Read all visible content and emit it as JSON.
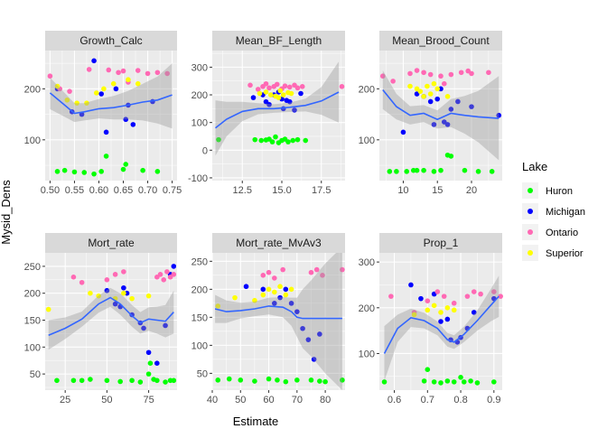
{
  "figure": {
    "xlabel": "Estimate",
    "ylabel": "Mysid_Dens"
  },
  "legend": {
    "title": "Lake",
    "placement": "right",
    "items": [
      {
        "label": "Huron",
        "color": "#00ff00"
      },
      {
        "label": "Michigan",
        "color": "#0000ff"
      },
      {
        "label": "Ontario",
        "color": "#ff69b4"
      },
      {
        "label": "Superior",
        "color": "#ffff00"
      }
    ]
  },
  "colors": {
    "panel_bg": "#ebebeb",
    "strip_bg": "#d9d9d9",
    "grid": "#ffffff",
    "smooth_line": "#3366ff",
    "ribbon": "#999999"
  },
  "chart_data": [
    {
      "type": "scatter",
      "title": "Growth_Calc",
      "xlim": [
        0.49,
        0.76
      ],
      "ylim": [
        20,
        275
      ],
      "xticks": [
        0.5,
        0.55,
        0.6,
        0.65,
        0.7,
        0.75
      ],
      "xtick_labels": [
        "0.50",
        "0.55",
        "0.60",
        "0.65",
        "0.70",
        "0.75"
      ],
      "yticks": [
        100,
        200
      ],
      "smooth": {
        "x": [
          0.5,
          0.53,
          0.55,
          0.57,
          0.6,
          0.63,
          0.66,
          0.69,
          0.72,
          0.75
        ],
        "y": [
          192,
          168,
          152,
          155,
          161,
          163,
          168,
          174,
          178,
          188
        ],
        "lower": [
          160,
          145,
          135,
          138,
          142,
          140,
          140,
          138,
          132,
          122
        ],
        "upper": [
          222,
          192,
          172,
          172,
          180,
          186,
          196,
          210,
          224,
          250
        ]
      },
      "series": [
        {
          "name": "Huron",
          "x": [
            0.515,
            0.53,
            0.55,
            0.57,
            0.59,
            0.605,
            0.615,
            0.65,
            0.655,
            0.69,
            0.72
          ],
          "y": [
            38,
            40,
            37,
            36,
            33,
            38,
            68,
            42,
            52,
            40,
            38
          ]
        },
        {
          "name": "Michigan",
          "x": [
            0.515,
            0.545,
            0.565,
            0.59,
            0.605,
            0.615,
            0.635,
            0.655,
            0.66,
            0.67,
            0.71
          ],
          "y": [
            200,
            155,
            150,
            255,
            190,
            115,
            200,
            140,
            168,
            130,
            175
          ]
        },
        {
          "name": "Ontario",
          "x": [
            0.5,
            0.52,
            0.54,
            0.58,
            0.62,
            0.64,
            0.65,
            0.66,
            0.68,
            0.7,
            0.72,
            0.74
          ],
          "y": [
            225,
            200,
            195,
            238,
            237,
            232,
            235,
            213,
            236,
            230,
            232,
            230
          ]
        },
        {
          "name": "Superior",
          "x": [
            0.515,
            0.535,
            0.555,
            0.575,
            0.595,
            0.61,
            0.63,
            0.66,
            0.68
          ],
          "y": [
            205,
            178,
            172,
            172,
            192,
            200,
            210,
            218,
            210
          ]
        }
      ]
    },
    {
      "type": "scatter",
      "title": "Mean_BF_Length",
      "xlim": [
        10.6,
        19.0
      ],
      "ylim": [
        -110,
        360
      ],
      "xticks": [
        12.5,
        15,
        17.5
      ],
      "xtick_labels": [
        "12.5",
        "15.0",
        "17.5"
      ],
      "yticks": [
        -100,
        0,
        100,
        200,
        300
      ],
      "smooth": {
        "x": [
          10.8,
          11.5,
          12.5,
          13.5,
          14.5,
          15.5,
          16.5,
          17.5,
          18.6
        ],
        "y": [
          80,
          112,
          140,
          150,
          150,
          155,
          162,
          178,
          210
        ],
        "lower": [
          -20,
          50,
          105,
          130,
          135,
          138,
          140,
          128,
          100
        ],
        "upper": [
          180,
          175,
          175,
          170,
          166,
          172,
          186,
          228,
          320
        ]
      },
      "series": [
        {
          "name": "Huron",
          "x": [
            11.0,
            13.3,
            13.7,
            14.0,
            14.2,
            14.4,
            14.6,
            14.8,
            15.0,
            15.2,
            15.4,
            15.7,
            16.0,
            16.5
          ],
          "y": [
            38,
            38,
            35,
            37,
            40,
            30,
            48,
            27,
            35,
            40,
            30,
            35,
            38,
            35
          ]
        },
        {
          "name": "Michigan",
          "x": [
            13.2,
            13.8,
            14.2,
            14.5,
            14.8,
            15.0,
            15.1,
            15.3,
            15.5,
            15.8,
            16.2,
            14.0
          ],
          "y": [
            190,
            200,
            165,
            200,
            210,
            185,
            150,
            180,
            175,
            145,
            205,
            175
          ]
        },
        {
          "name": "Ontario",
          "x": [
            13.0,
            13.5,
            13.8,
            14.0,
            14.2,
            14.5,
            14.7,
            15.0,
            15.2,
            15.5,
            15.8,
            16.0,
            16.3,
            18.8
          ],
          "y": [
            235,
            220,
            230,
            240,
            225,
            230,
            238,
            222,
            232,
            228,
            235,
            225,
            230,
            230
          ]
        },
        {
          "name": "Superior",
          "x": [
            13.6,
            14.0,
            14.3,
            14.6,
            14.9,
            15.1,
            15.4,
            15.6,
            14.8
          ],
          "y": [
            205,
            210,
            200,
            195,
            215,
            200,
            208,
            205,
            190
          ]
        }
      ]
    },
    {
      "type": "scatter",
      "title": "Mean_Brood_Count",
      "xlim": [
        6.5,
        24.5
      ],
      "ylim": [
        20,
        275
      ],
      "xticks": [
        10,
        15,
        20
      ],
      "xtick_labels": [
        "10",
        "15",
        "20"
      ],
      "yticks": [
        100,
        200
      ],
      "smooth": {
        "x": [
          7,
          9,
          11,
          13,
          15,
          17,
          19,
          21,
          24
        ],
        "y": [
          198,
          165,
          148,
          152,
          140,
          152,
          148,
          145,
          142
        ],
        "lower": [
          160,
          140,
          130,
          135,
          122,
          125,
          112,
          95,
          60
        ],
        "upper": [
          236,
          190,
          166,
          168,
          158,
          180,
          186,
          196,
          225
        ]
      },
      "series": [
        {
          "name": "Huron",
          "x": [
            8.0,
            9.0,
            10.5,
            11.5,
            12.0,
            13.0,
            14.5,
            15.5,
            16.5,
            17.0,
            19.0,
            21.0,
            23.0
          ],
          "y": [
            38,
            38,
            38,
            40,
            40,
            40,
            38,
            40,
            70,
            68,
            40,
            38,
            38
          ]
        },
        {
          "name": "Michigan",
          "x": [
            10.0,
            12.0,
            13.0,
            14.0,
            14.5,
            15.0,
            15.5,
            16.0,
            16.5,
            17.0,
            18.0,
            20.0,
            24.0
          ],
          "y": [
            115,
            190,
            185,
            175,
            130,
            180,
            200,
            135,
            130,
            160,
            175,
            165,
            148
          ]
        },
        {
          "name": "Ontario",
          "x": [
            7.0,
            8.5,
            11.0,
            12.0,
            13.0,
            14.0,
            15.5,
            16.0,
            17.0,
            18.5,
            19.5,
            20.0,
            22.5
          ],
          "y": [
            225,
            215,
            230,
            236,
            232,
            228,
            225,
            210,
            228,
            232,
            235,
            230,
            232
          ]
        },
        {
          "name": "Superior",
          "x": [
            11.0,
            12.0,
            12.5,
            13.0,
            13.5,
            14.0,
            14.5,
            15.0,
            16.5
          ],
          "y": [
            205,
            200,
            195,
            185,
            205,
            190,
            210,
            200,
            185
          ]
        }
      ]
    },
    {
      "type": "scatter",
      "title": "Mort_rate",
      "xlim": [
        13,
        92
      ],
      "ylim": [
        20,
        275
      ],
      "xticks": [
        25,
        50,
        75
      ],
      "xtick_labels": [
        "25",
        "50",
        "75"
      ],
      "yticks": [
        50,
        100,
        150,
        200,
        250
      ],
      "smooth": {
        "x": [
          15,
          25,
          35,
          45,
          52,
          58,
          65,
          70,
          75,
          80,
          85,
          90
        ],
        "y": [
          122,
          135,
          152,
          180,
          192,
          180,
          158,
          145,
          152,
          150,
          148,
          165
        ],
        "lower": [
          95,
          115,
          138,
          164,
          175,
          160,
          138,
          125,
          130,
          125,
          118,
          125
        ],
        "upper": [
          150,
          155,
          166,
          196,
          210,
          200,
          178,
          165,
          174,
          175,
          178,
          205
        ]
      },
      "series": [
        {
          "name": "Huron",
          "x": [
            20,
            30,
            35,
            40,
            50,
            58,
            65,
            70,
            75,
            76,
            78,
            80,
            85,
            88,
            90
          ],
          "y": [
            38,
            38,
            38,
            40,
            38,
            36,
            38,
            35,
            50,
            70,
            40,
            38,
            35,
            38,
            38
          ]
        },
        {
          "name": "Michigan",
          "x": [
            50,
            55,
            58,
            60,
            62,
            65,
            70,
            72,
            75,
            80,
            85,
            88,
            90
          ],
          "y": [
            205,
            180,
            175,
            210,
            200,
            160,
            145,
            135,
            90,
            70,
            140,
            235,
            250
          ]
        },
        {
          "name": "Ontario",
          "x": [
            30,
            35,
            50,
            55,
            60,
            80,
            82,
            84,
            86,
            88,
            90
          ],
          "y": [
            230,
            220,
            225,
            235,
            240,
            230,
            235,
            225,
            240,
            230,
            235
          ]
        },
        {
          "name": "Superior",
          "x": [
            15,
            40,
            45,
            55,
            60,
            65,
            75
          ],
          "y": [
            170,
            200,
            195,
            190,
            200,
            190,
            195
          ]
        }
      ]
    },
    {
      "type": "scatter",
      "title": "Mort_rate_MvAv3",
      "xlim": [
        40,
        87
      ],
      "ylim": [
        20,
        265
      ],
      "xticks": [
        40,
        50,
        60,
        70,
        80
      ],
      "xtick_labels": [
        "40",
        "50",
        "60",
        "70",
        "80"
      ],
      "yticks": [
        50,
        100,
        150,
        200,
        250
      ],
      "smooth": {
        "x": [
          41,
          45,
          50,
          55,
          60,
          65,
          68,
          70,
          72,
          75,
          80,
          86
        ],
        "y": [
          165,
          160,
          162,
          165,
          170,
          168,
          160,
          150,
          148,
          148,
          148,
          148
        ],
        "lower": [
          140,
          140,
          148,
          152,
          155,
          150,
          135,
          115,
          95,
          80,
          50,
          20
        ],
        "upper": [
          190,
          180,
          176,
          178,
          185,
          186,
          185,
          185,
          200,
          216,
          246,
          276
        ]
      },
      "series": [
        {
          "name": "Huron",
          "x": [
            42,
            46,
            50,
            55,
            60,
            63,
            66,
            70,
            75,
            78,
            80,
            86
          ],
          "y": [
            38,
            40,
            38,
            36,
            40,
            38,
            35,
            38,
            38,
            36,
            35,
            38
          ]
        },
        {
          "name": "Michigan",
          "x": [
            52,
            58,
            62,
            64,
            66,
            68,
            70,
            72,
            74,
            76,
            78
          ],
          "y": [
            205,
            200,
            175,
            185,
            200,
            175,
            160,
            130,
            110,
            75,
            120
          ]
        },
        {
          "name": "Ontario",
          "x": [
            58,
            60,
            62,
            65,
            75,
            77,
            79,
            86
          ],
          "y": [
            225,
            230,
            220,
            235,
            230,
            235,
            225,
            235
          ]
        },
        {
          "name": "Superior",
          "x": [
            42,
            48,
            55,
            58,
            60,
            62,
            64,
            66,
            68
          ],
          "y": [
            170,
            185,
            180,
            190,
            200,
            195,
            205,
            190,
            200
          ]
        }
      ]
    },
    {
      "type": "scatter",
      "title": "Prop_1",
      "xlim": [
        0.555,
        0.925
      ],
      "ylim": [
        20,
        320
      ],
      "xticks": [
        0.6,
        0.7,
        0.8,
        0.9
      ],
      "xtick_labels": [
        "0.6",
        "0.7",
        "0.8",
        "0.9"
      ],
      "yticks": [
        100,
        200,
        300
      ],
      "smooth": {
        "x": [
          0.57,
          0.61,
          0.65,
          0.69,
          0.73,
          0.76,
          0.78,
          0.81,
          0.85,
          0.89,
          0.915
        ],
        "y": [
          100,
          155,
          178,
          172,
          155,
          130,
          125,
          142,
          172,
          205,
          225
        ],
        "lower": [
          40,
          125,
          158,
          155,
          140,
          115,
          110,
          125,
          150,
          170,
          180
        ],
        "upper": [
          160,
          185,
          198,
          189,
          170,
          145,
          140,
          159,
          194,
          240,
          270
        ]
      },
      "series": [
        {
          "name": "Huron",
          "x": [
            0.57,
            0.69,
            0.7,
            0.72,
            0.74,
            0.76,
            0.78,
            0.8,
            0.81,
            0.83,
            0.85,
            0.9
          ],
          "y": [
            38,
            40,
            65,
            38,
            36,
            40,
            38,
            48,
            38,
            40,
            36,
            38
          ]
        },
        {
          "name": "Michigan",
          "x": [
            0.65,
            0.68,
            0.72,
            0.74,
            0.76,
            0.77,
            0.79,
            0.8,
            0.82,
            0.84,
            0.9
          ],
          "y": [
            250,
            220,
            230,
            170,
            175,
            130,
            125,
            135,
            155,
            190,
            220
          ]
        },
        {
          "name": "Ontario",
          "x": [
            0.59,
            0.66,
            0.7,
            0.73,
            0.75,
            0.78,
            0.82,
            0.84,
            0.86,
            0.9,
            0.92
          ],
          "y": [
            225,
            190,
            215,
            235,
            225,
            210,
            225,
            235,
            230,
            235,
            225
          ]
        },
        {
          "name": "Superior",
          "x": [
            0.66,
            0.7,
            0.72,
            0.74,
            0.76,
            0.78
          ],
          "y": [
            185,
            195,
            205,
            190,
            200,
            195
          ]
        }
      ]
    }
  ]
}
